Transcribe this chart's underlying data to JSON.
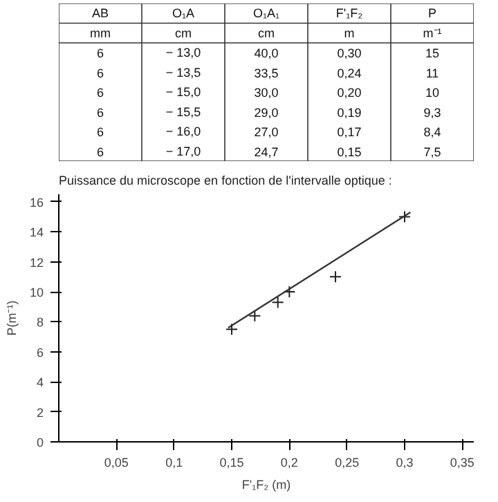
{
  "chart_data": [
    {
      "type": "other",
      "annotations": [
        "AB",
        "O₁A",
        "O₁A₁",
        "F'₁F₂",
        "P",
        "mm",
        "cm",
        "cm",
        "m",
        "m⁻¹",
        "6",
        "− 13,0",
        "40,0",
        "0,30",
        "15",
        "6",
        "− 13,5",
        "33,5",
        "0,24",
        "11",
        "6",
        "− 15,0",
        "30,0",
        "0,20",
        "10",
        "6",
        "− 15,5",
        "29,0",
        "0,19",
        "9,3",
        "6",
        "− 16,0",
        "27,0",
        "0,17",
        "8,4",
        "6",
        "− 17,0",
        "24,7",
        "0,15",
        "7,5"
      ]
    },
    {
      "type": "scatter",
      "title": "Puissance du microscope en fonction de l'intervalle optique :",
      "xlabel": "F'₁F₂ (m)",
      "ylabel": "P(m⁻¹)",
      "marker": "cross",
      "grid": false,
      "x": [
        0.3,
        0.24,
        0.2,
        0.19,
        0.17,
        0.15
      ],
      "series": [
        {
          "color": "#222222",
          "values": [
            15,
            11,
            10,
            9.3,
            8.4,
            7.5
          ]
        },
        {
          "type": "line",
          "marker": "none",
          "color": "#333333",
          "x": [
            0.147,
            0.305
          ],
          "values": [
            7.6,
            15.3
          ]
        }
      ],
      "xlim": [
        0,
        0.36
      ],
      "ylim": [
        0,
        16.5
      ],
      "xticks": [
        {
          "value": 0.05,
          "label": "0,05"
        },
        {
          "value": 0.1,
          "label": "0,1"
        },
        {
          "value": 0.15,
          "label": "0,15"
        },
        {
          "value": 0.2,
          "label": "0,2"
        },
        {
          "value": 0.25,
          "label": "0,25"
        },
        {
          "value": 0.3,
          "label": "0,3"
        },
        {
          "value": 0.35,
          "label": "0,35"
        }
      ],
      "yticks": [
        0,
        2,
        4,
        6,
        8,
        10,
        12,
        14,
        16
      ]
    }
  ]
}
